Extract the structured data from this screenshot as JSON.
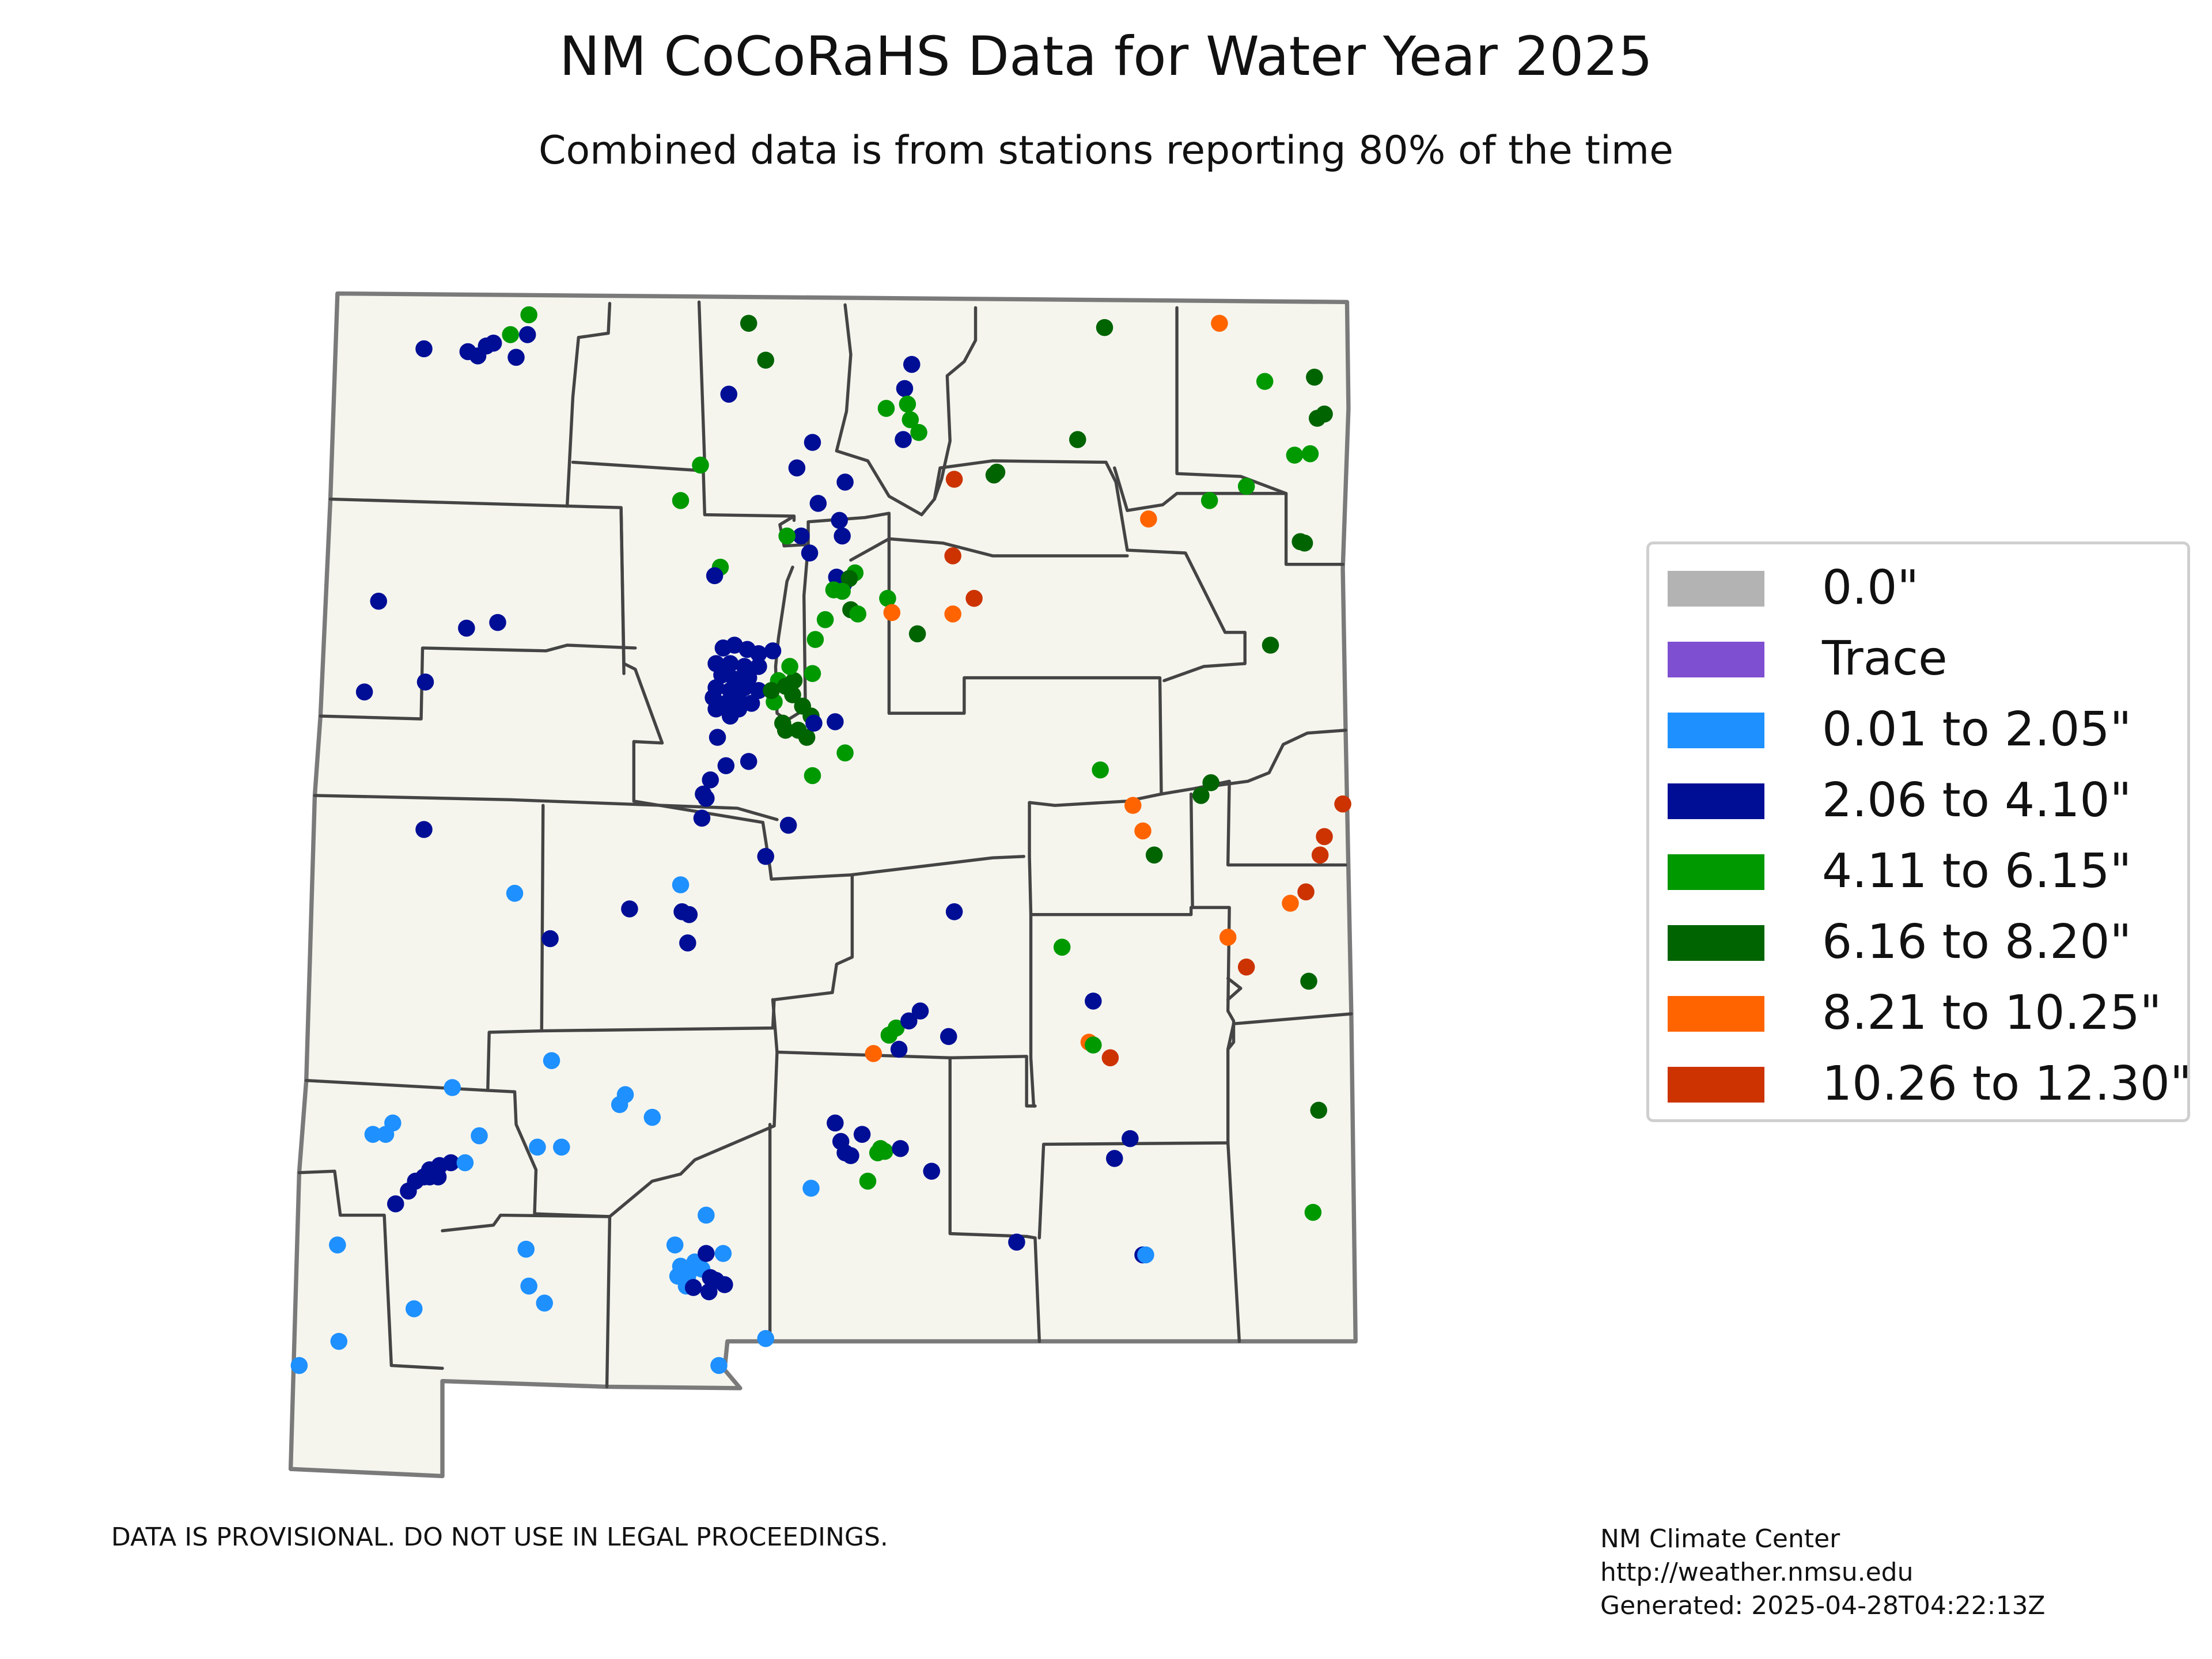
{
  "title": "NM CoCoRaHS Data for Water Year 2025",
  "subtitle": "Combined data is from stations reporting 80% of the time",
  "colors": {
    "land": "#f5f5ee",
    "state_border": "#7a7a7a",
    "county_border": "#444444"
  },
  "legend": [
    {
      "label": "0.0\"",
      "color": "#b3b3b3"
    },
    {
      "label": "Trace",
      "color": "#7f4fd1"
    },
    {
      "label": "0.01 to 2.05\"",
      "color": "#1e90ff"
    },
    {
      "label": "2.06 to 4.10\"",
      "color": "#000e96"
    },
    {
      "label": "4.11 to 6.15\"",
      "color": "#009900"
    },
    {
      "label": "6.16 to 8.20\"",
      "color": "#006400"
    },
    {
      "label": "8.21 to 10.25\"",
      "color": "#ff6400"
    },
    {
      "label": "10.26 to 12.30\"",
      "color": "#cc3300"
    }
  ],
  "disclaimer": "DATA IS PROVISIONAL. DO NOT USE IN LEGAL PROCEEDINGS.",
  "credits": {
    "org": "NM Climate Center",
    "url": "http://weather.nmsu.edu",
    "generated": "Generated: 2025-04-28T04:22:13Z"
  }
}
